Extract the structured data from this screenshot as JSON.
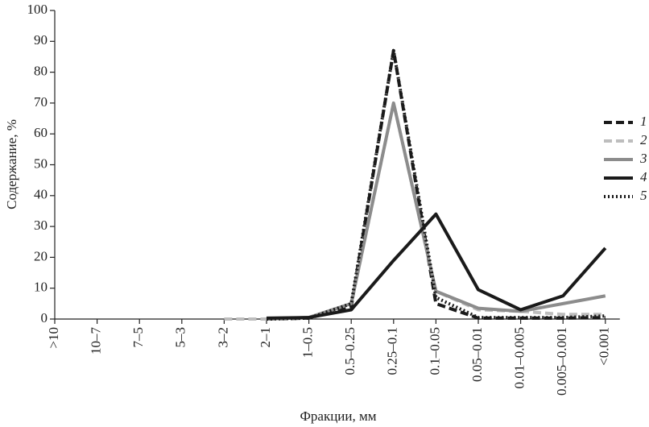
{
  "chart_data": {
    "type": "line",
    "x_label": "Фракции, мм",
    "y_label": "Содержание, %",
    "categories": [
      ">10",
      "10–7",
      "7–5",
      "5–3",
      "3–2",
      "2–1",
      "1–0.5",
      "0.5–0.25",
      "0.25–0.1",
      "0.1–0.05",
      "0.05–0.01",
      "0.01–0.005",
      "0.005–0.001",
      "<0.001"
    ],
    "series": [
      {
        "name": "1",
        "color": "#1a1a1a",
        "dash": "dashed",
        "values": [
          null,
          null,
          null,
          null,
          null,
          0,
          0.3,
          4,
          87,
          5,
          0.3,
          0.3,
          0.3,
          0.5
        ]
      },
      {
        "name": "2",
        "color": "#bdbdbd",
        "dash": "dashed",
        "values": [
          null,
          null,
          null,
          null,
          0,
          0,
          0.5,
          5,
          70,
          9,
          3,
          2.5,
          1.5,
          1.5
        ]
      },
      {
        "name": "3",
        "color": "#8c8c8c",
        "dash": "solid",
        "values": [
          null,
          null,
          null,
          null,
          null,
          0,
          0.5,
          5,
          70,
          9,
          3.5,
          2.5,
          5,
          7.5
        ]
      },
      {
        "name": "4",
        "color": "#1a1a1a",
        "dash": "solid",
        "values": [
          null,
          null,
          null,
          null,
          null,
          0.3,
          0.5,
          3,
          19,
          34,
          9.5,
          3,
          7.5,
          23
        ]
      },
      {
        "name": "5",
        "color": "#1a1a1a",
        "dash": "dotted",
        "values": [
          null,
          null,
          null,
          null,
          null,
          0,
          0.3,
          5,
          87,
          7,
          0.5,
          0.5,
          0.5,
          1
        ]
      }
    ],
    "ylim": [
      0,
      100
    ],
    "yticks": [
      0,
      10,
      20,
      30,
      40,
      50,
      60,
      70,
      80,
      90,
      100
    ],
    "legend": "right"
  }
}
